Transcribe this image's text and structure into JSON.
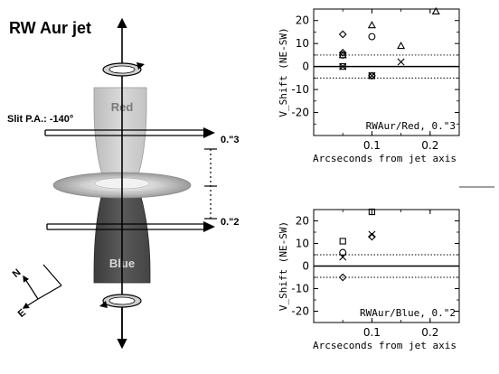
{
  "diagram": {
    "title": "RW Aur jet",
    "slit_label": "Slit P.A.: -140°",
    "red_label": "Red",
    "blue_label": "Blue",
    "offset_top": "0.\"3",
    "offset_bottom": "0.\"2",
    "compass_n": "N",
    "compass_e": "E"
  },
  "chart_data": [
    {
      "type": "scatter",
      "panel_label": "RWAur/Red, 0.\"3",
      "xlabel": "Arcseconds from jet axis",
      "ylabel": "V_Shift (NE-SW)",
      "xlim": [
        0.0,
        0.25
      ],
      "ylim": [
        -30,
        25
      ],
      "xticks": [
        "0.1",
        "0.2"
      ],
      "yticks": [
        "20",
        "10",
        "0",
        "-10",
        "-20"
      ],
      "dotted_lines_y": [
        5,
        -5
      ],
      "zero_line": true,
      "series": [
        {
          "marker": "triangle",
          "points": [
            [
              0.05,
              5
            ],
            [
              0.1,
              18
            ],
            [
              0.15,
              9
            ],
            [
              0.21,
              24
            ]
          ]
        },
        {
          "marker": "diamond",
          "points": [
            [
              0.05,
              14
            ],
            [
              0.05,
              6
            ],
            [
              0.1,
              -4
            ]
          ]
        },
        {
          "marker": "circle",
          "points": [
            [
              0.05,
              5
            ],
            [
              0.1,
              13
            ]
          ]
        },
        {
          "marker": "square",
          "points": [
            [
              0.05,
              0
            ],
            [
              0.1,
              -4
            ]
          ]
        },
        {
          "marker": "cross",
          "points": [
            [
              0.05,
              0
            ],
            [
              0.1,
              -4
            ],
            [
              0.15,
              2
            ]
          ]
        }
      ]
    },
    {
      "type": "scatter",
      "panel_label": "RWAur/Blue, 0.\"2",
      "xlabel": "Arcseconds from jet axis",
      "ylabel": "V_Shift (NE-SW)",
      "xlim": [
        0.0,
        0.25
      ],
      "ylim": [
        -25,
        25
      ],
      "xticks": [
        "0.1",
        "0.2"
      ],
      "yticks": [
        "20",
        "10",
        "0",
        "-10",
        "-20"
      ],
      "dotted_lines_y": [
        5,
        -5
      ],
      "zero_line": true,
      "series": [
        {
          "marker": "square",
          "points": [
            [
              0.05,
              11
            ],
            [
              0.1,
              24
            ]
          ]
        },
        {
          "marker": "circle",
          "points": [
            [
              0.05,
              6
            ]
          ]
        },
        {
          "marker": "cross",
          "points": [
            [
              0.05,
              4
            ],
            [
              0.1,
              14
            ]
          ]
        },
        {
          "marker": "diamond",
          "points": [
            [
              0.05,
              -5
            ],
            [
              0.1,
              13
            ]
          ]
        }
      ]
    }
  ]
}
